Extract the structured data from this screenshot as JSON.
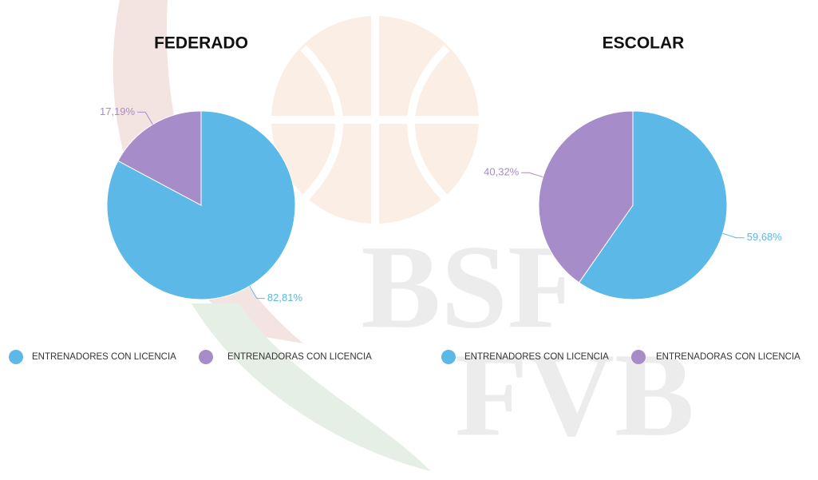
{
  "chart_data": [
    {
      "type": "pie",
      "title": "FEDERADO",
      "categories": [
        "ENTRENADORES CON LICENCIA",
        "ENTRENADORAS CON LICENCIA"
      ],
      "values": [
        82.81,
        17.19
      ],
      "value_labels": [
        "82,81%",
        "17,19%"
      ],
      "colors": [
        "#5cb8e6",
        "#a68cc8"
      ]
    },
    {
      "type": "pie",
      "title": "ESCOLAR",
      "categories": [
        "ENTRENADORES CON LICENCIA",
        "ENTRENADORAS CON LICENCIA"
      ],
      "values": [
        59.68,
        40.32
      ],
      "value_labels": [
        "59,68%",
        "40,32%"
      ],
      "colors": [
        "#5cb8e6",
        "#a68cc8"
      ]
    }
  ],
  "watermark": [
    "BSF",
    "FVB"
  ]
}
